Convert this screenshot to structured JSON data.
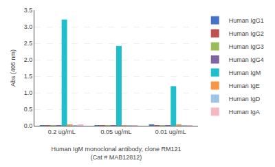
{
  "chart_data": {
    "type": "bar",
    "xlabel": "Human IgM monoclonal antibody, clone RM121\n(Cat # MAB12812)",
    "ylabel": "Abs (405 nm)",
    "categories": [
      "0.2 ug/mL",
      "0.05 ug/mL",
      "0.01 ug/mL"
    ],
    "series": [
      {
        "name": "Human IgG1",
        "color": "#4472C4",
        "values": [
          0.02,
          0.02,
          0.03
        ]
      },
      {
        "name": "Human IgG2",
        "color": "#C0504D",
        "values": [
          0.02,
          0.02,
          0.02
        ]
      },
      {
        "name": "Human IgG3",
        "color": "#9BBB59",
        "values": [
          0.02,
          0.02,
          0.02
        ]
      },
      {
        "name": "Human IgG4",
        "color": "#8064A2",
        "values": [
          0.02,
          0.02,
          0.02
        ]
      },
      {
        "name": "Human IgM",
        "color": "#1FBECC",
        "values": [
          3.22,
          2.42,
          1.2
        ]
      },
      {
        "name": "Human IgE",
        "color": "#F79646",
        "values": [
          0.03,
          0.02,
          0.03
        ]
      },
      {
        "name": "Human IgD",
        "color": "#9DC3E6",
        "values": [
          0.02,
          0.02,
          0.02
        ]
      },
      {
        "name": "Human IgA",
        "color": "#F4B8C1",
        "values": [
          0.03,
          0.02,
          0.02
        ]
      }
    ],
    "ylim": [
      0,
      3.5
    ],
    "yticks": [
      {
        "value": 0,
        "label": "0.0"
      },
      0.5,
      {
        "value": 1.0,
        "label": "1.0"
      },
      1.5,
      {
        "value": 2.0,
        "label": "2.0"
      },
      2.5,
      {
        "value": 3.0,
        "label": "3.0"
      },
      3.5
    ],
    "grid": true,
    "legend": "right"
  }
}
